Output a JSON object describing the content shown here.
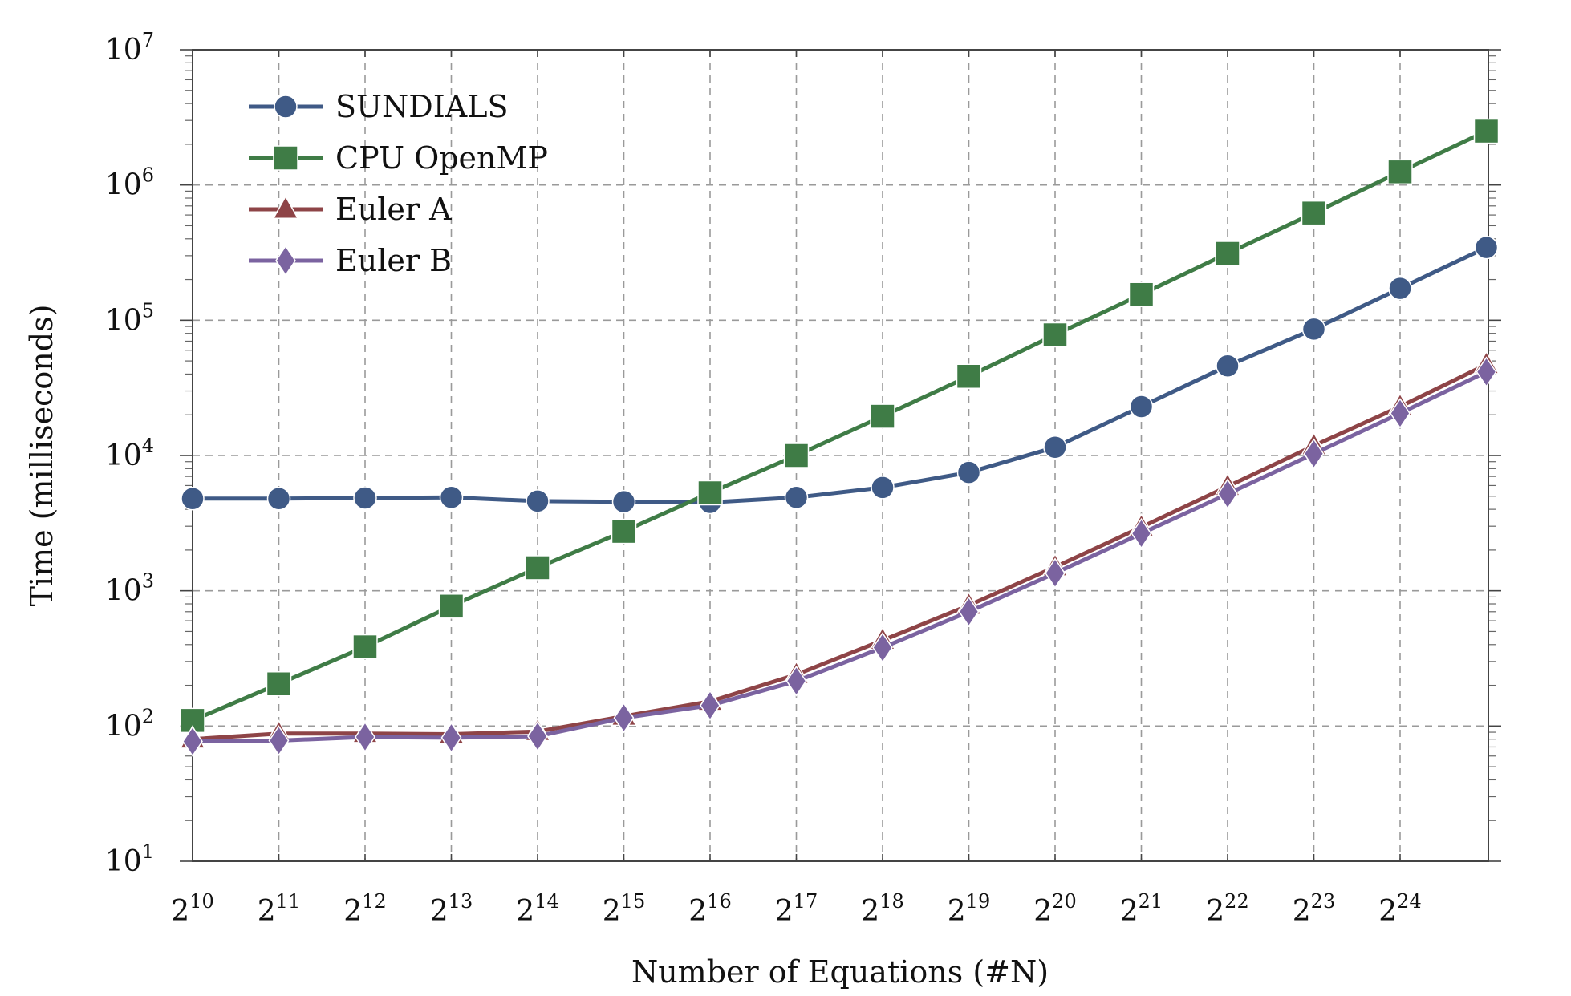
{
  "chart_data": {
    "type": "line",
    "title": "",
    "xlabel": "Number of Equations (#N)",
    "ylabel": "Time (milliseconds)",
    "x_scale": "log2",
    "y_scale": "log10",
    "x": [
      1024,
      2048,
      4096,
      8192,
      16384,
      32768,
      65536,
      131072,
      262144,
      524288,
      1048576,
      2097152,
      4194304,
      8388608,
      16777216,
      33554432
    ],
    "x_tick_base": "2",
    "x_tick_exponents": [
      "10",
      "11",
      "12",
      "13",
      "14",
      "15",
      "16",
      "17",
      "18",
      "19",
      "20",
      "21",
      "22",
      "23",
      "24"
    ],
    "y_tick_base": "10",
    "y_tick_exponents": [
      "1",
      "2",
      "3",
      "4",
      "5",
      "6",
      "7"
    ],
    "ylim": [
      10,
      10000000
    ],
    "grid": true,
    "legend_position": "top-left",
    "series": [
      {
        "name": "SUNDIALS",
        "marker": "circle",
        "color": "#3f5a86",
        "values": [
          4800,
          4800,
          4850,
          4900,
          4600,
          4550,
          4500,
          4900,
          5800,
          7500,
          11500,
          23000,
          46000,
          86000,
          172000,
          345000
        ]
      },
      {
        "name": "CPU OpenMP",
        "marker": "square",
        "color": "#3f7c46",
        "values": [
          110,
          205,
          385,
          770,
          1480,
          2750,
          5300,
          10000,
          19500,
          38500,
          78000,
          155000,
          312000,
          620000,
          1250000,
          2500000
        ]
      },
      {
        "name": "Euler A",
        "marker": "triangle",
        "color": "#8e4447",
        "values": [
          80,
          88,
          88,
          87,
          91,
          118,
          152,
          240,
          430,
          780,
          1500,
          2950,
          5900,
          11800,
          23000,
          47000
        ]
      },
      {
        "name": "Euler B",
        "marker": "diamond",
        "color": "#7b63a0",
        "values": [
          77,
          78,
          83,
          82,
          84,
          115,
          142,
          215,
          380,
          700,
          1350,
          2650,
          5200,
          10300,
          20500,
          41500
        ]
      }
    ]
  }
}
